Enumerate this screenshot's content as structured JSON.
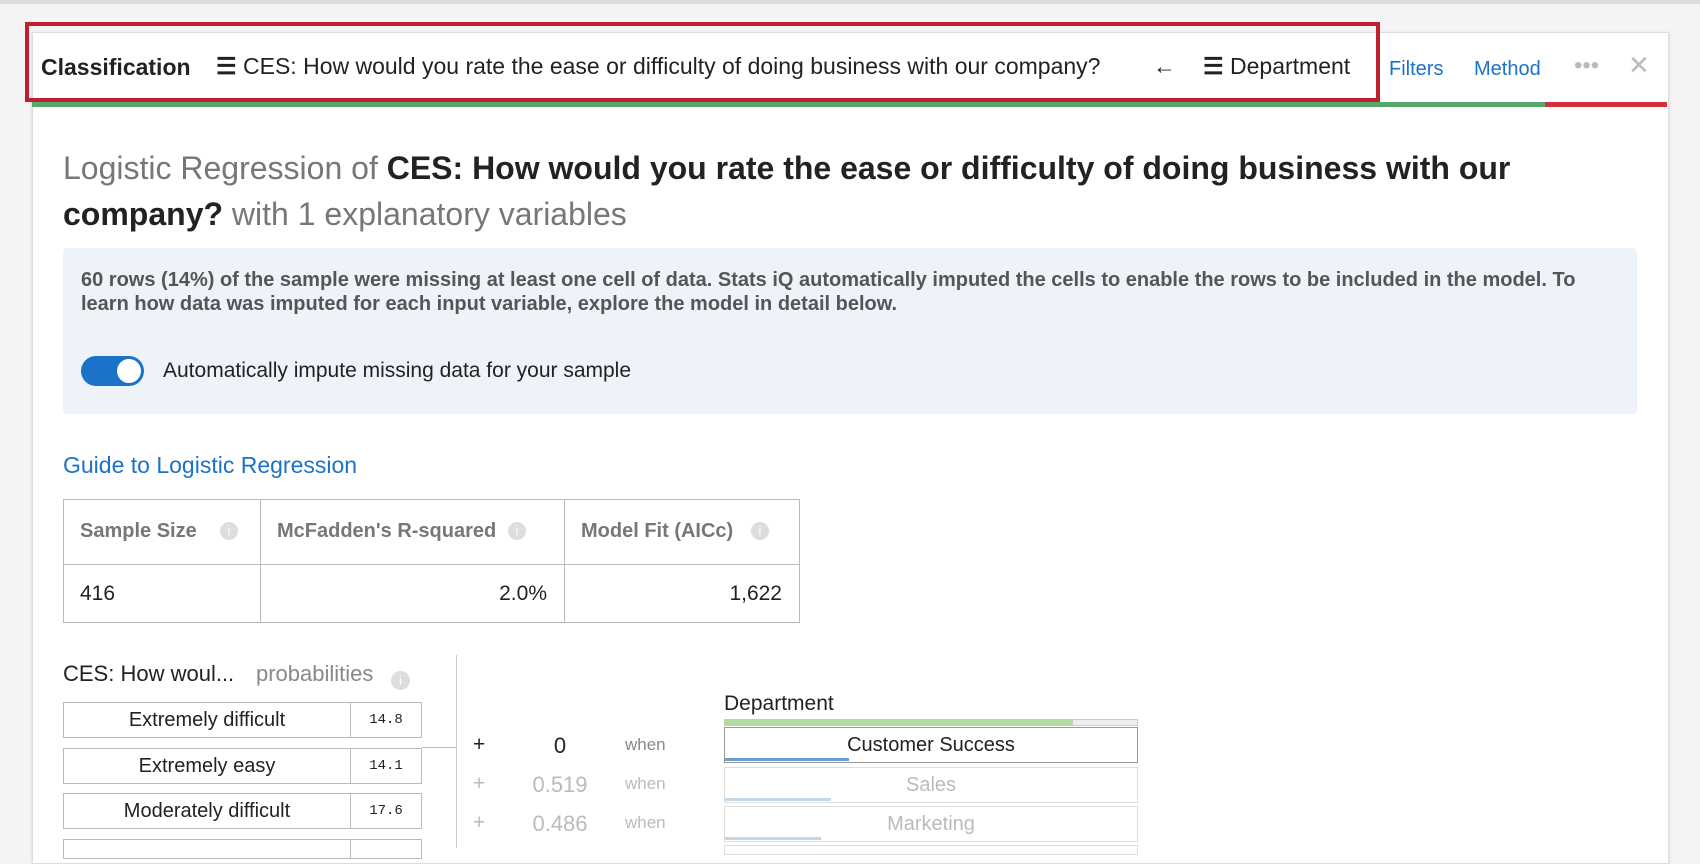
{
  "header": {
    "tab": "Classification",
    "outcome": "CES: How would you rate the ease or difficulty of doing business with our company?",
    "arrow": "←",
    "predictor": "Department",
    "filters": "Filters",
    "method": "Method"
  },
  "title": {
    "prefix": "Logistic Regression of",
    "outcome": "CES: How would you rate the ease or difficulty of doing business with our company?",
    "suffix": "with 1 explanatory variables"
  },
  "notice": {
    "text": "60 rows (14%) of the sample were missing at least one cell of data. Stats iQ automatically imputed the cells to enable the rows to be included in the model. To learn how data was imputed for each input variable, explore the model in detail below.",
    "toggle_label": "Automatically impute missing data for your sample"
  },
  "guide_link": "Guide to Logistic Regression",
  "table": {
    "headers": [
      "Sample Size",
      "McFadden's R-squared",
      "Model Fit (AICc)"
    ],
    "values": [
      "416",
      "2.0%",
      "1,622"
    ]
  },
  "probabilities": {
    "label": "CES: How woul...",
    "caption": "probabilities",
    "rows": [
      [
        "Extremely difficult",
        "14.8"
      ],
      [
        "Extremely easy",
        "14.1"
      ],
      [
        "Moderately difficult",
        "17.6"
      ]
    ]
  },
  "coefficients": [
    [
      "+",
      "0",
      "when"
    ],
    [
      "+",
      "0.519",
      "when"
    ],
    [
      "+",
      "0.486",
      "when"
    ]
  ],
  "department": {
    "label": "Department",
    "levels": [
      "Customer Success",
      "Sales",
      "Marketing"
    ]
  }
}
